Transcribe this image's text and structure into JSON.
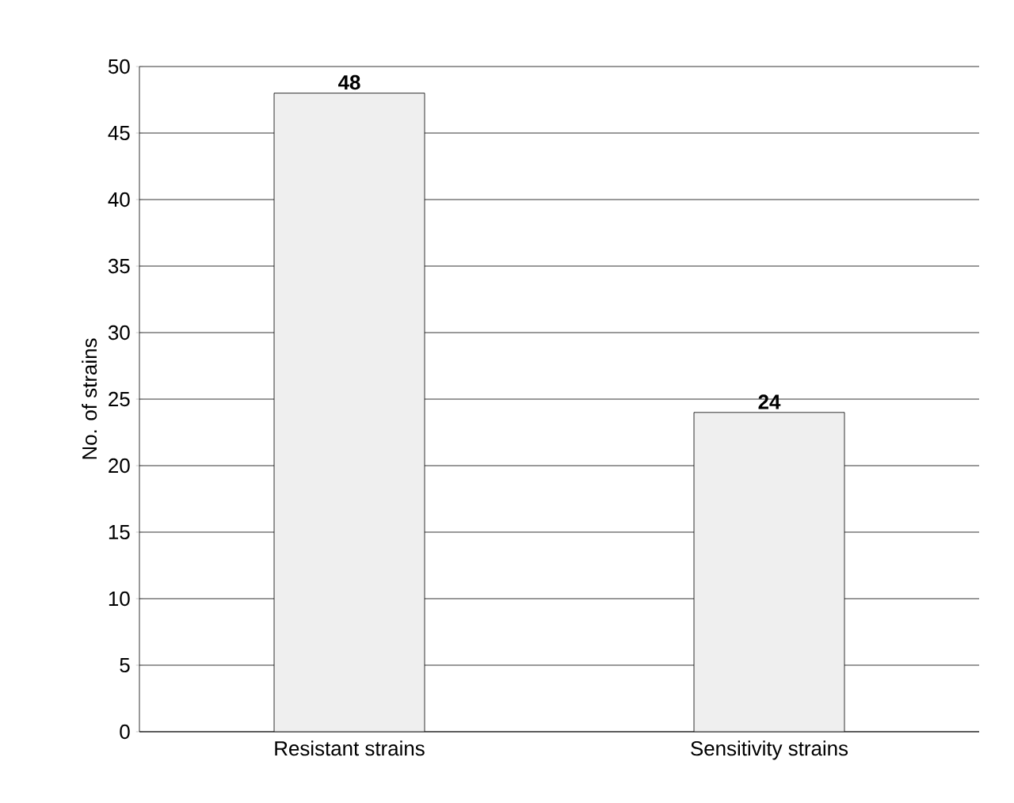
{
  "chart_data": {
    "type": "bar",
    "ylabel": "No. of strains",
    "categories": [
      "Resistant strains",
      "Sensitivity strains"
    ],
    "values": [
      48,
      24
    ],
    "color": "#efefef",
    "ylim": [
      0,
      50
    ],
    "yticks": [
      0,
      5,
      10,
      15,
      20,
      25,
      30,
      35,
      40,
      45,
      50
    ],
    "grid": "y",
    "data_labels": true
  }
}
